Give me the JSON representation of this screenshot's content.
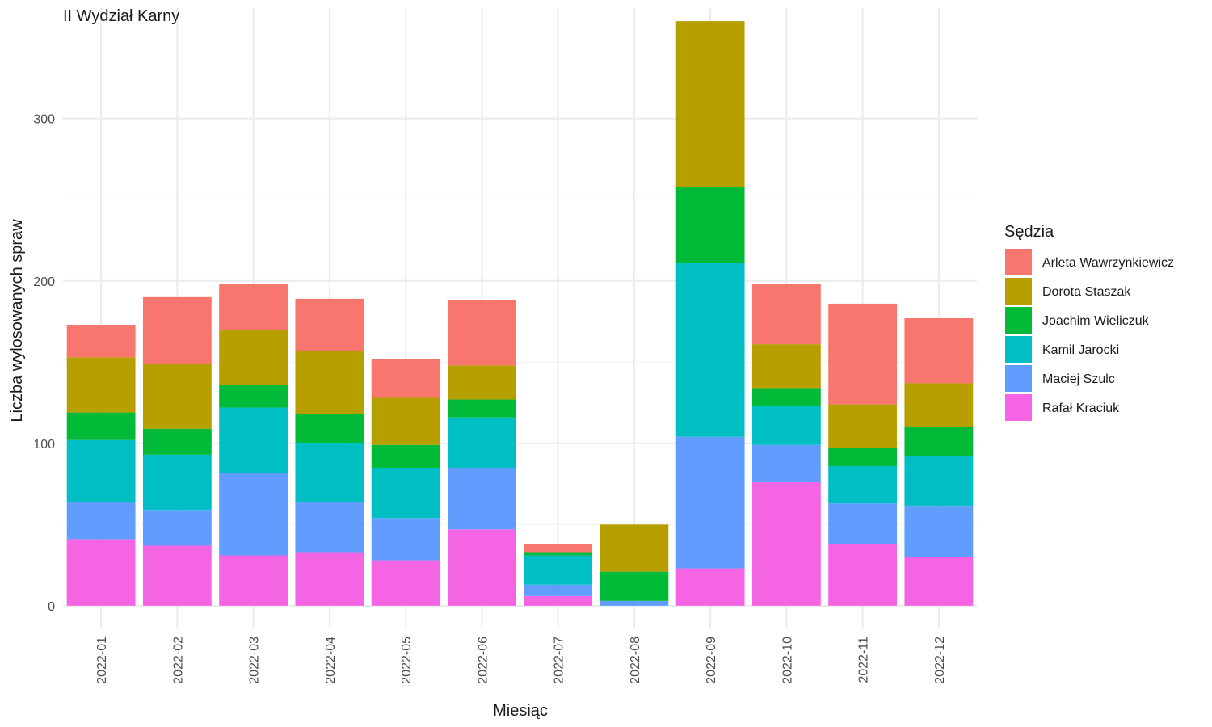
{
  "chart_data": {
    "type": "bar",
    "stacked": true,
    "title": "II Wydział Karny",
    "xlabel": "Miesiąc",
    "ylabel": "Liczba wylosowanych spraw",
    "ylim": [
      -14,
      368
    ],
    "yticks": [
      0,
      100,
      200,
      300
    ],
    "grid": true,
    "legend_title": "Sędzia",
    "legend_position": "right",
    "categories": [
      "2022-01",
      "2022-02",
      "2022-03",
      "2022-04",
      "2022-05",
      "2022-06",
      "2022-07",
      "2022-08",
      "2022-09",
      "2022-10",
      "2022-11",
      "2022-12"
    ],
    "series": [
      {
        "name": "Rafał Kraciuk",
        "color": "#F564E3",
        "values": [
          41,
          37,
          31,
          33,
          28,
          47,
          6,
          0,
          23,
          76,
          38,
          30
        ]
      },
      {
        "name": "Maciej Szulc",
        "color": "#619CFF",
        "values": [
          23,
          22,
          51,
          31,
          26,
          38,
          7,
          3,
          81,
          23,
          25,
          31
        ]
      },
      {
        "name": "Kamil Jarocki",
        "color": "#00BFC4",
        "values": [
          38,
          34,
          40,
          36,
          31,
          31,
          18,
          0,
          107,
          24,
          23,
          31
        ]
      },
      {
        "name": "Joachim Wieliczuk",
        "color": "#00BA38",
        "values": [
          17,
          16,
          14,
          18,
          14,
          11,
          2,
          18,
          47,
          11,
          11,
          18
        ]
      },
      {
        "name": "Dorota Staszak",
        "color": "#B79F00",
        "values": [
          34,
          40,
          34,
          39,
          29,
          21,
          0,
          29,
          102,
          27,
          27,
          27
        ]
      },
      {
        "name": "Arleta Wawrzynkiewicz",
        "color": "#F8766D",
        "values": [
          20,
          41,
          28,
          32,
          24,
          40,
          5,
          0,
          0,
          37,
          62,
          40
        ]
      }
    ],
    "legend_order": [
      "Arleta Wawrzynkiewicz",
      "Dorota Staszak",
      "Joachim Wieliczuk",
      "Kamil Jarocki",
      "Maciej Szulc",
      "Rafał Kraciuk"
    ]
  }
}
